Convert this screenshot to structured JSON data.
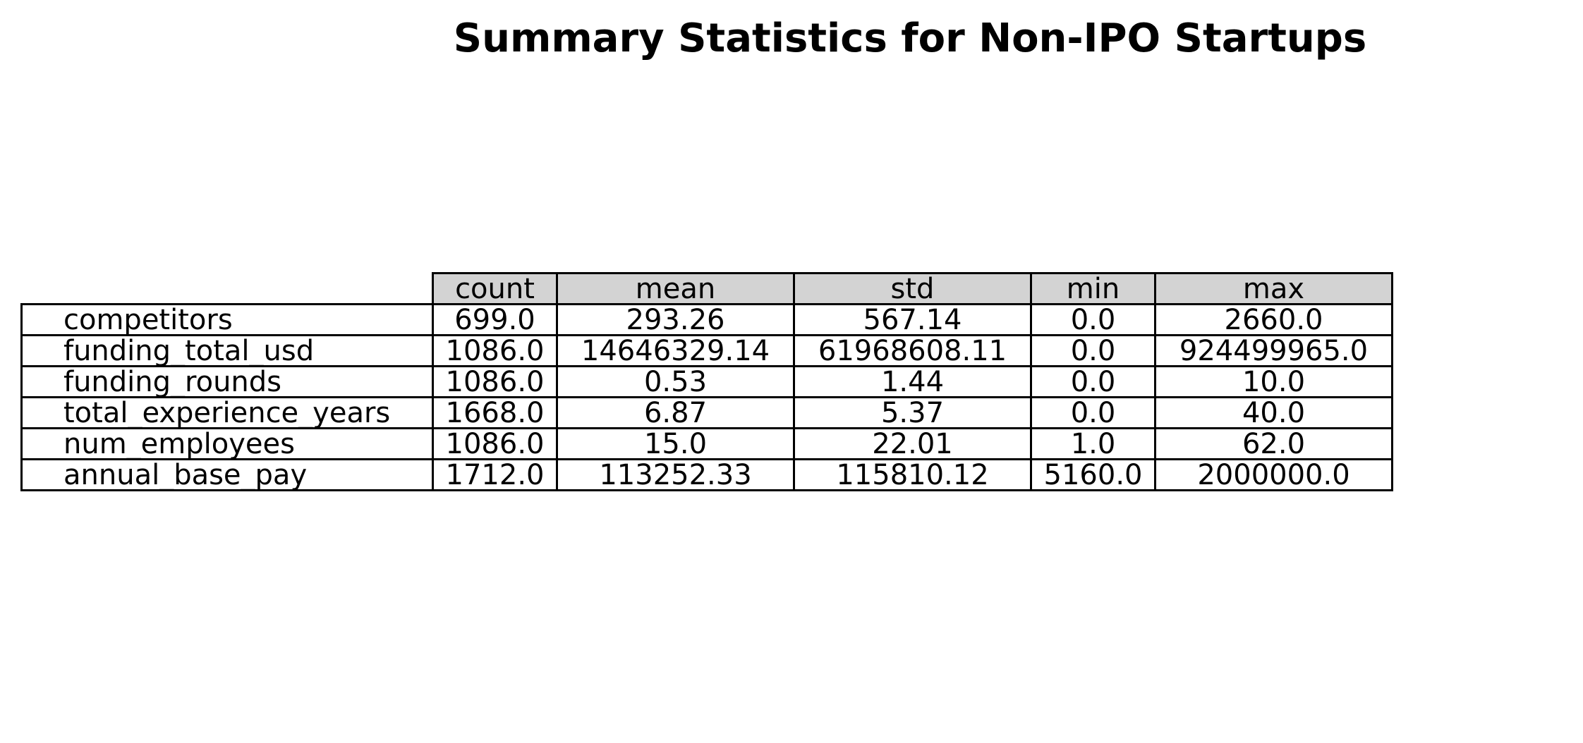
{
  "chart_data": {
    "type": "table",
    "title": "Summary Statistics for Non-IPO Startups",
    "columns": [
      "count",
      "mean",
      "std",
      "min",
      "max"
    ],
    "rows": [
      {
        "label": "competitors",
        "values": [
          "699.0",
          "293.26",
          "567.14",
          "0.0",
          "2660.0"
        ]
      },
      {
        "label": "funding_total_usd",
        "values": [
          "1086.0",
          "14646329.14",
          "61968608.11",
          "0.0",
          "924499965.0"
        ]
      },
      {
        "label": "funding_rounds",
        "values": [
          "1086.0",
          "0.53",
          "1.44",
          "0.0",
          "10.0"
        ]
      },
      {
        "label": "total_experience_years",
        "values": [
          "1668.0",
          "6.87",
          "5.37",
          "0.0",
          "40.0"
        ]
      },
      {
        "label": "num_employees",
        "values": [
          "1086.0",
          "15.0",
          "22.01",
          "1.0",
          "62.0"
        ]
      },
      {
        "label": "annual_base_pay",
        "values": [
          "1712.0",
          "113252.33",
          "115810.12",
          "5160.0",
          "2000000.0"
        ]
      }
    ],
    "header_fill": "#d3d3d3",
    "border_color": "#000000"
  }
}
